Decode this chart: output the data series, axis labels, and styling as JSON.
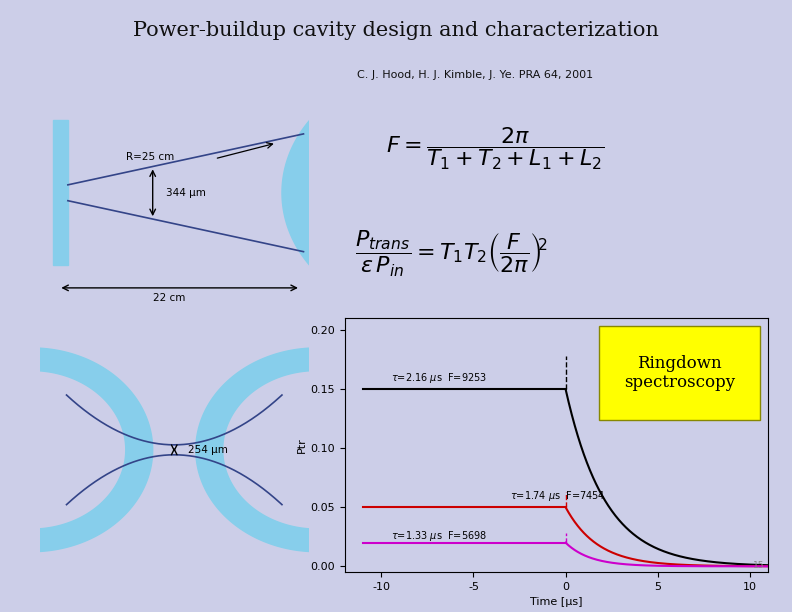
{
  "title": "Power-buildup cavity design and characterization",
  "citation": "C. J. Hood, H. J. Kimble, J. Ye. PRA 64, 2001",
  "bg_color": "#cccee8",
  "cavity_color": "#87ceeb",
  "ringdown_label": "Ringdown\nspectroscopy",
  "ringdown_bg": "#ffff00",
  "curve1_level": 0.15,
  "curve1_color": "#000000",
  "curve2_level": 0.05,
  "curve2_color": "#cc0000",
  "curve3_level": 0.02,
  "curve3_color": "#cc00cc",
  "plot_xlim": [
    -12,
    11
  ],
  "plot_ylim": [
    -0.005,
    0.21
  ],
  "plot_yticks": [
    0.0,
    0.05,
    0.1,
    0.15,
    0.2
  ],
  "plot_xticks": [
    -10,
    -5,
    0,
    5,
    10
  ],
  "xlabel": "Time [μs]",
  "ylabel": "Ptr"
}
